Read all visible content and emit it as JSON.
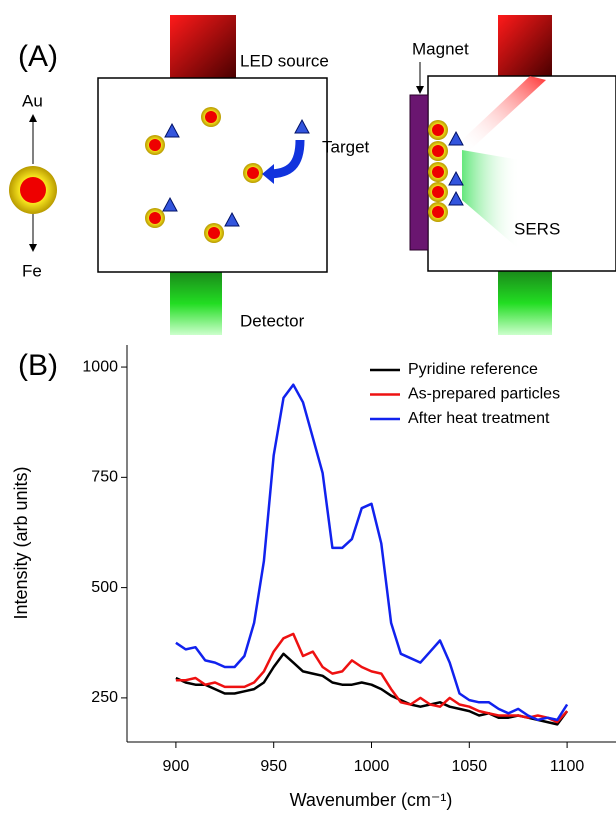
{
  "diagram": {
    "panel_a": "(A)",
    "panel_b": "(B)",
    "led": "LED source",
    "magnet": "Magnet",
    "au": "Au",
    "fe": "Fe",
    "target": "Target",
    "detector": "Detector",
    "sers": "SERS"
  },
  "chart_data": {
    "type": "line",
    "xlabel": "Wavenumber (cm⁻¹)",
    "ylabel": "Intensity (arb units)",
    "xlim": [
      875,
      1125
    ],
    "ylim": [
      150,
      1050
    ],
    "xticks": [
      900,
      950,
      1000,
      1050,
      1100
    ],
    "yticks": [
      250,
      500,
      750,
      1000
    ],
    "legend": "upper right",
    "x": [
      900,
      905,
      910,
      915,
      920,
      925,
      930,
      935,
      940,
      945,
      950,
      955,
      960,
      965,
      970,
      975,
      980,
      985,
      990,
      995,
      1000,
      1005,
      1010,
      1015,
      1020,
      1025,
      1030,
      1035,
      1040,
      1045,
      1050,
      1055,
      1060,
      1065,
      1070,
      1075,
      1080,
      1085,
      1090,
      1095,
      1100
    ],
    "series": [
      {
        "name": "Pyridine reference",
        "color": "#000000",
        "values": [
          295,
          285,
          280,
          280,
          270,
          260,
          260,
          265,
          270,
          285,
          320,
          350,
          330,
          310,
          305,
          300,
          285,
          280,
          280,
          285,
          280,
          270,
          255,
          245,
          235,
          230,
          235,
          240,
          230,
          225,
          220,
          210,
          215,
          205,
          205,
          210,
          205,
          200,
          195,
          190,
          220
        ]
      },
      {
        "name": "As-prepared particles",
        "color": "#ee1111",
        "values": [
          290,
          290,
          295,
          280,
          285,
          275,
          275,
          275,
          285,
          310,
          355,
          385,
          395,
          345,
          355,
          320,
          305,
          310,
          335,
          320,
          310,
          305,
          270,
          240,
          235,
          250,
          235,
          230,
          250,
          235,
          230,
          220,
          215,
          210,
          210,
          210,
          205,
          210,
          205,
          195,
          220
        ]
      },
      {
        "name": "After heat treatment",
        "color": "#1122ee",
        "values": [
          375,
          360,
          365,
          335,
          330,
          320,
          320,
          345,
          420,
          560,
          800,
          930,
          960,
          920,
          840,
          760,
          590,
          590,
          610,
          680,
          690,
          600,
          420,
          350,
          340,
          330,
          355,
          380,
          330,
          260,
          245,
          240,
          240,
          225,
          215,
          225,
          210,
          200,
          205,
          200,
          235
        ]
      }
    ]
  }
}
